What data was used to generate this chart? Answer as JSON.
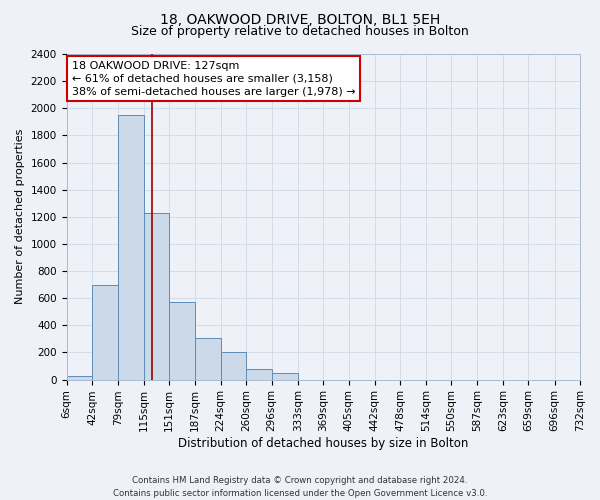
{
  "title1": "18, OAKWOOD DRIVE, BOLTON, BL1 5EH",
  "title2": "Size of property relative to detached houses in Bolton",
  "xlabel": "Distribution of detached houses by size in Bolton",
  "ylabel": "Number of detached properties",
  "footnote1": "Contains HM Land Registry data © Crown copyright and database right 2024.",
  "footnote2": "Contains public sector information licensed under the Open Government Licence v3.0.",
  "property_size": 127,
  "annotation_text": "18 OAKWOOD DRIVE: 127sqm\n← 61% of detached houses are smaller (3,158)\n38% of semi-detached houses are larger (1,978) →",
  "bar_edges": [
    6,
    42,
    79,
    115,
    151,
    187,
    224,
    260,
    296,
    333,
    369,
    405,
    442,
    478,
    514,
    550,
    587,
    623,
    659,
    696,
    732
  ],
  "bar_heights": [
    30,
    700,
    1950,
    1230,
    570,
    305,
    200,
    80,
    45,
    0,
    0,
    0,
    0,
    0,
    0,
    0,
    0,
    0,
    0,
    0
  ],
  "bar_color": "#ccd9e8",
  "bar_edge_color": "#5b8db8",
  "grid_color": "#d0d8e8",
  "vline_color": "#990000",
  "ylim": [
    0,
    2400
  ],
  "yticks": [
    0,
    200,
    400,
    600,
    800,
    1000,
    1200,
    1400,
    1600,
    1800,
    2000,
    2200,
    2400
  ],
  "annotation_box_facecolor": "#ffffff",
  "annotation_box_edgecolor": "#cc0000",
  "bg_color": "#eef2f8",
  "title1_fontsize": 10,
  "title2_fontsize": 9,
  "ylabel_fontsize": 8,
  "xlabel_fontsize": 8.5,
  "tick_fontsize": 7.5,
  "annot_fontsize": 8
}
